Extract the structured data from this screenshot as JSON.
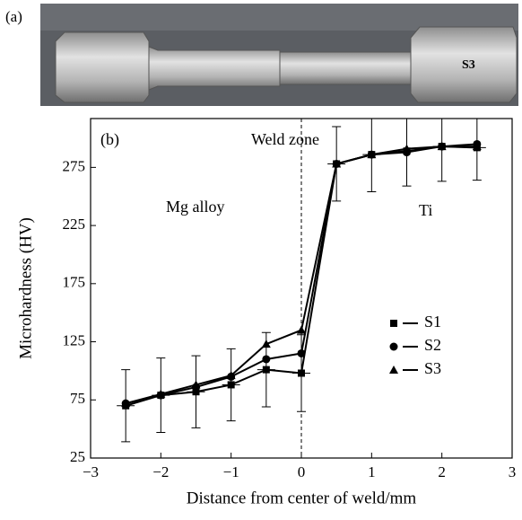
{
  "photo": {
    "label": "(a)",
    "marker": "S3"
  },
  "chart_data": {
    "type": "line",
    "panel_label": "(b)",
    "x_label": "Distance from center of weld/mm",
    "y_label": "Microhardness (HV)",
    "annotations": [
      "Weld zone",
      "Mg alloy",
      "Ti"
    ],
    "x": [
      -2.5,
      -2,
      -1.5,
      -1,
      -0.5,
      0,
      0.5,
      1,
      1.5,
      2,
      2.5
    ],
    "series": [
      {
        "name": "S1",
        "color": "#000000",
        "marker": "square",
        "values": [
          70,
          79,
          82,
          88,
          101,
          98,
          278,
          286,
          289,
          293,
          292
        ],
        "errors": [
          31,
          32,
          31,
          31,
          32,
          33,
          32,
          32,
          30,
          30,
          28
        ]
      },
      {
        "name": "S2",
        "color": "#000000",
        "marker": "circle",
        "values": [
          72,
          79,
          86,
          95,
          110,
          115,
          278,
          286,
          288,
          293,
          295
        ]
      },
      {
        "name": "S3",
        "color": "#000000",
        "marker": "triangle",
        "values": [
          72,
          80,
          88,
          96,
          123,
          135,
          278,
          286,
          291,
          293,
          293
        ]
      }
    ],
    "xlim": [
      -3,
      3
    ],
    "xticks": [
      {
        "value": -3,
        "label": "−3"
      },
      {
        "value": -2,
        "label": "−2"
      },
      {
        "value": -1,
        "label": "−1"
      },
      0,
      1,
      2,
      3
    ],
    "ylim": [
      25,
      317
    ],
    "yticks": [
      25,
      75,
      125,
      175,
      225,
      275
    ],
    "grid": false,
    "legend": "lower right"
  }
}
